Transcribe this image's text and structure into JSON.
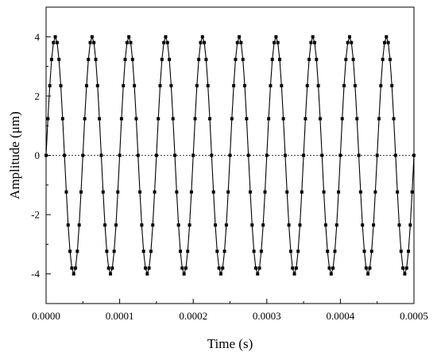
{
  "chart_data": {
    "type": "line",
    "title": "",
    "xlabel": "Time (s)",
    "ylabel": "Amplitude (μm)",
    "xlim": [
      0,
      0.0005
    ],
    "ylim": [
      -5,
      5
    ],
    "x_ticks": [
      "0.0000",
      "0.0001",
      "0.0002",
      "0.0003",
      "0.0004",
      "0.0005"
    ],
    "x_tick_values": [
      0,
      0.0001,
      0.0002,
      0.0003,
      0.0004,
      0.0005
    ],
    "y_ticks": [
      "-4",
      "-2",
      "0",
      "2",
      "4"
    ],
    "y_tick_values": [
      -4,
      -2,
      0,
      2,
      4
    ],
    "reference_line": {
      "y": 0,
      "style": "dotted"
    },
    "grid": false,
    "legend": "none",
    "series": [
      {
        "marker": "square",
        "color": "#000000",
        "signal": {
          "shape": "sine",
          "amplitude_um": 4.0,
          "frequency_hz": 20000,
          "start_s": 0,
          "end_s": 0.0005,
          "sample_interval_s": 2.5e-06
        }
      }
    ]
  }
}
